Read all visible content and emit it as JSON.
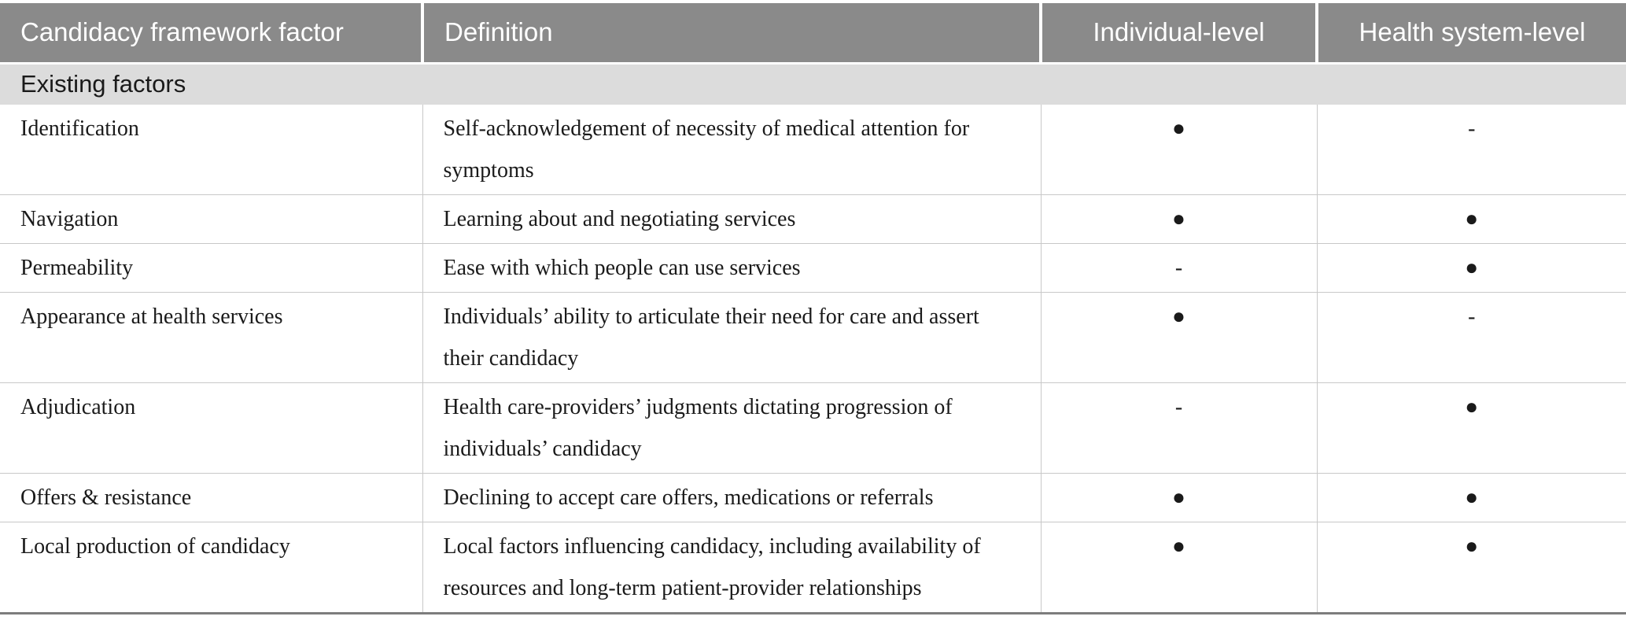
{
  "table": {
    "header": {
      "columns": [
        {
          "label": "Candidacy framework factor",
          "align": "left"
        },
        {
          "label": "Definition",
          "align": "left"
        },
        {
          "label": "Individual-level",
          "align": "center"
        },
        {
          "label": "Health system-level",
          "align": "center"
        }
      ]
    },
    "section": {
      "label": "Existing factors"
    },
    "rows": [
      {
        "factor": "Identification",
        "definition": "Self-acknowledgement of necessity of medical attention for symptoms",
        "individual": "●",
        "system": "-"
      },
      {
        "factor": "Navigation",
        "definition": "Learning about and negotiating services",
        "individual": "●",
        "system": "●"
      },
      {
        "factor": "Permeability",
        "definition": "Ease with which people can use services",
        "individual": "-",
        "system": "●"
      },
      {
        "factor": "Appearance at health services",
        "definition": "Individuals’ ability to articulate their need for care and assert their candidacy",
        "individual": "●",
        "system": "-"
      },
      {
        "factor": "Adjudication",
        "definition": "Health care-providers’ judgments dictating progression of individuals’ candidacy",
        "individual": "-",
        "system": "●"
      },
      {
        "factor": "Offers & resistance",
        "definition": "Declining to accept care offers, medications or referrals",
        "individual": "●",
        "system": "●"
      },
      {
        "factor": "Local production of candidacy",
        "definition": "Local factors influencing candidacy, including availability of resources and long-term patient-provider relationships",
        "individual": "●",
        "system": "●"
      }
    ],
    "symbols": {
      "present": "●",
      "absent": "-"
    }
  },
  "colors": {
    "header_bg": "#8a8a8a",
    "header_text": "#ffffff",
    "section_bg": "#dcdcdc",
    "row_border": "#c8c8c8",
    "bottom_border": "#7d7d7d",
    "body_text": "#1a1a1a"
  }
}
